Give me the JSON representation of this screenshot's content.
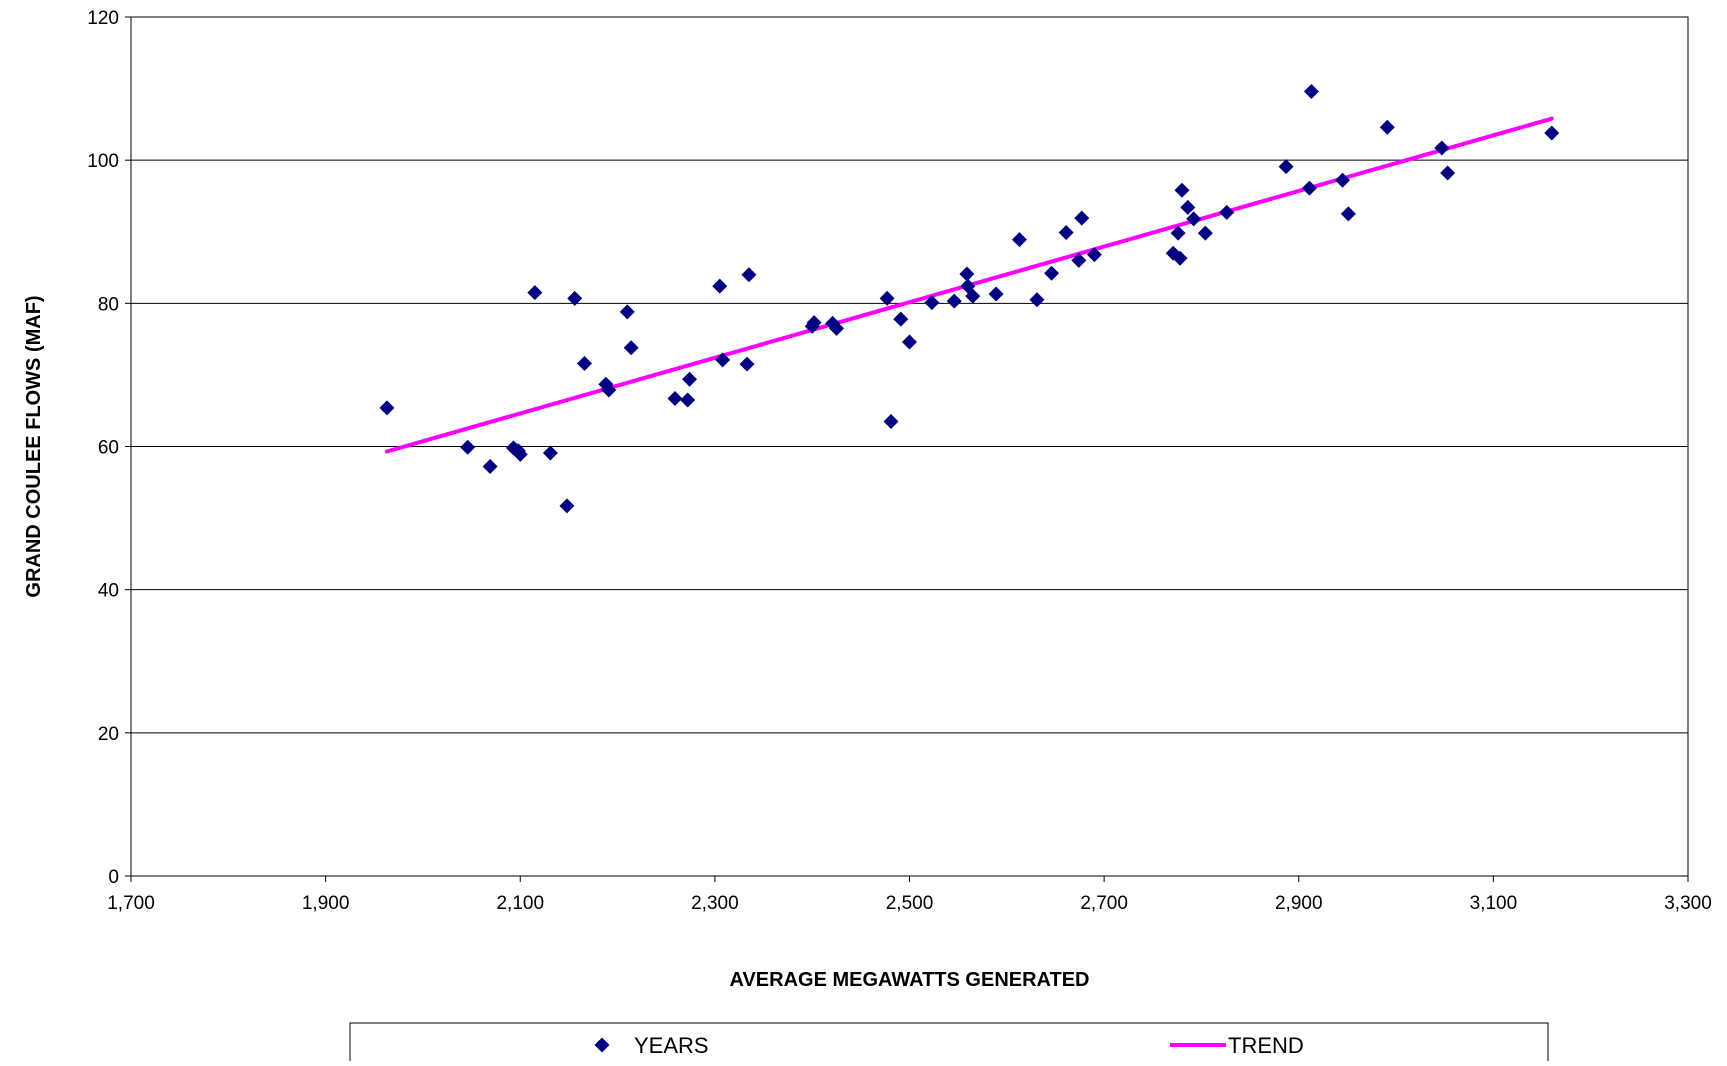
{
  "chart_data": {
    "type": "scatter",
    "title": "",
    "xlabel": "AVERAGE MEGAWATTS GENERATED",
    "ylabel": "GRAND COULEE FLOWS (MAF)",
    "xlim": [
      1700,
      3300
    ],
    "ylim": [
      0,
      120
    ],
    "x_ticks": [
      1700,
      1900,
      2100,
      2300,
      2500,
      2700,
      2900,
      3100,
      3300
    ],
    "x_tick_labels": [
      "1,700",
      "1,900",
      "2,100",
      "2,300",
      "2,500",
      "2,700",
      "2,900",
      "3,100",
      "3,300"
    ],
    "y_ticks": [
      0,
      20,
      40,
      60,
      80,
      100,
      120
    ],
    "y_tick_labels": [
      "0",
      "20",
      "40",
      "60",
      "80",
      "100",
      "120"
    ],
    "grid": "horizontal",
    "legend_position": "bottom",
    "series": [
      {
        "name": "YEARS",
        "kind": "scatter",
        "marker": "diamond",
        "color": "#000080",
        "points": [
          [
            1963,
            65.4
          ],
          [
            2046,
            59.9
          ],
          [
            2069,
            57.2
          ],
          [
            2093,
            59.8
          ],
          [
            2098,
            59.4
          ],
          [
            2100,
            58.9
          ],
          [
            2115,
            81.5
          ],
          [
            2131,
            59.1
          ],
          [
            2148,
            51.7
          ],
          [
            2156,
            80.7
          ],
          [
            2166,
            71.6
          ],
          [
            2188,
            68.7
          ],
          [
            2191,
            67.9
          ],
          [
            2210,
            78.8
          ],
          [
            2214,
            73.8
          ],
          [
            2259,
            66.7
          ],
          [
            2272,
            66.5
          ],
          [
            2274,
            69.4
          ],
          [
            2305,
            82.4
          ],
          [
            2308,
            72.1
          ],
          [
            2333,
            71.5
          ],
          [
            2335,
            84.0
          ],
          [
            2400,
            76.8
          ],
          [
            2402,
            77.3
          ],
          [
            2421,
            77.2
          ],
          [
            2425,
            76.5
          ],
          [
            2477,
            80.7
          ],
          [
            2481,
            63.5
          ],
          [
            2491,
            77.8
          ],
          [
            2500,
            74.6
          ],
          [
            2523,
            80.1
          ],
          [
            2546,
            80.3
          ],
          [
            2559,
            84.1
          ],
          [
            2560,
            82.4
          ],
          [
            2565,
            81.0
          ],
          [
            2589,
            81.3
          ],
          [
            2613,
            88.9
          ],
          [
            2631,
            80.5
          ],
          [
            2646,
            84.2
          ],
          [
            2661,
            89.9
          ],
          [
            2674,
            86.0
          ],
          [
            2677,
            91.9
          ],
          [
            2690,
            86.8
          ],
          [
            2771,
            87.0
          ],
          [
            2776,
            89.8
          ],
          [
            2778,
            86.3
          ],
          [
            2780,
            95.8
          ],
          [
            2786,
            93.4
          ],
          [
            2792,
            91.8
          ],
          [
            2804,
            89.8
          ],
          [
            2826,
            92.7
          ],
          [
            2887,
            99.1
          ],
          [
            2911,
            96.1
          ],
          [
            2913,
            109.6
          ],
          [
            2945,
            97.2
          ],
          [
            2951,
            92.5
          ],
          [
            2991,
            104.6
          ],
          [
            3047,
            101.7
          ],
          [
            3053,
            98.2
          ],
          [
            3160,
            103.8
          ]
        ]
      },
      {
        "name": "TREND",
        "kind": "line",
        "color": "#FF00FF",
        "points": [
          [
            1963,
            59.3
          ],
          [
            3160,
            105.8
          ]
        ]
      }
    ]
  }
}
